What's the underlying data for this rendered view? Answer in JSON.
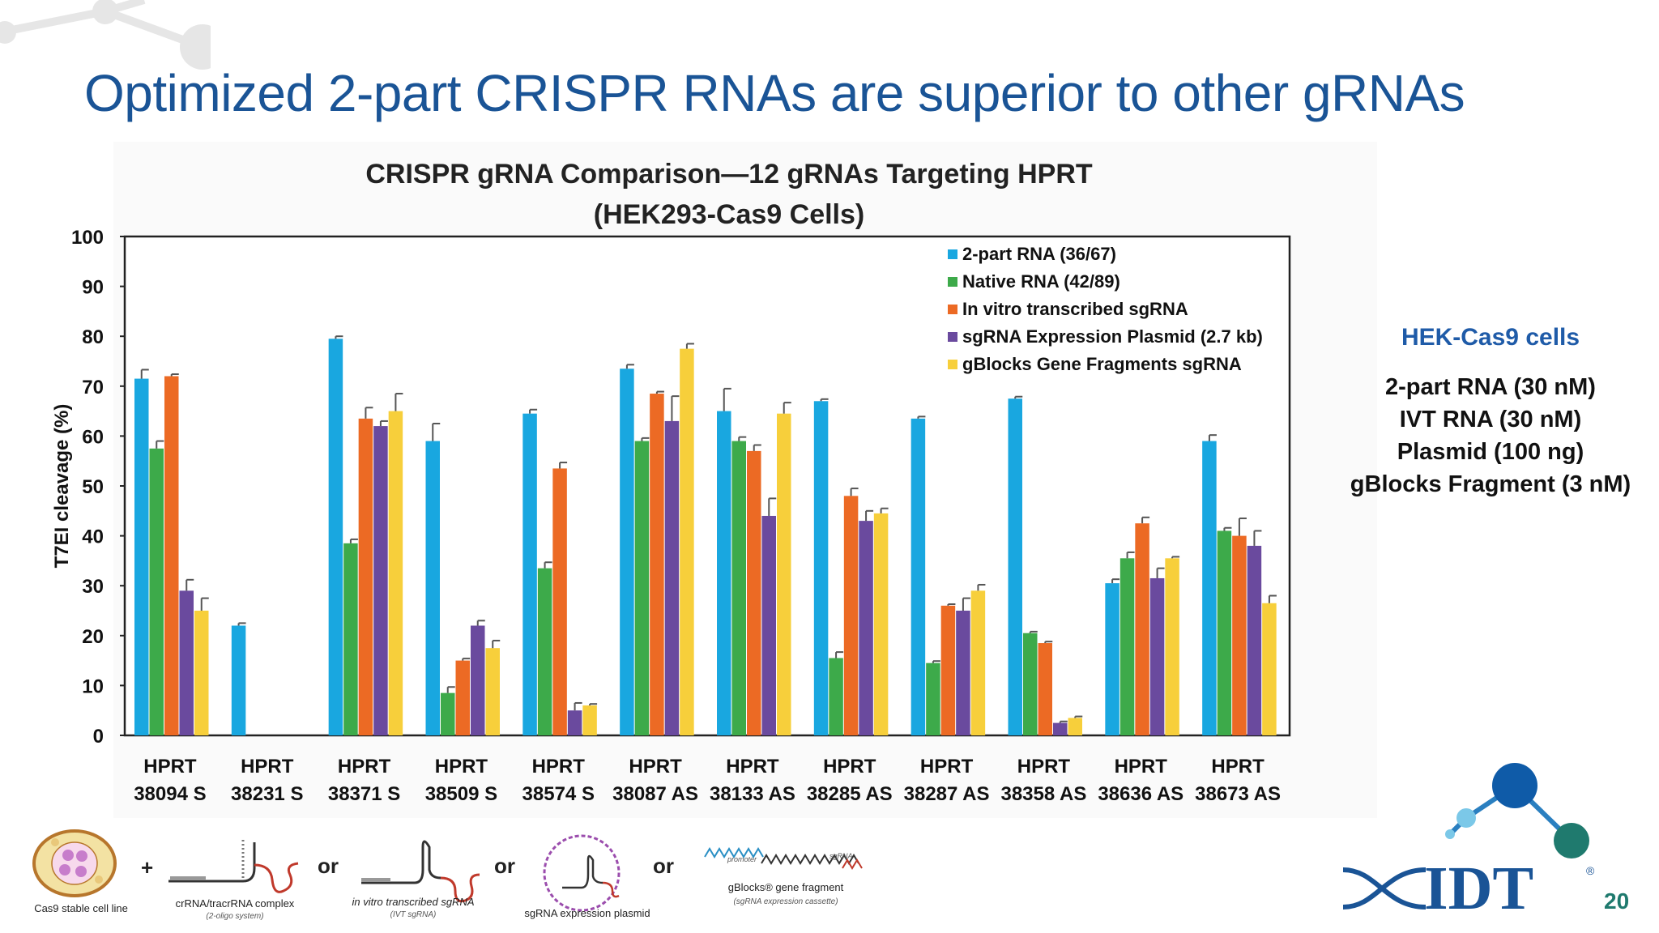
{
  "slide": {
    "title": "Optimized 2-part CRISPR RNAs are superior to other gRNAs",
    "page_number": "20"
  },
  "side_panel": {
    "heading": "HEK-Cas9 cells",
    "lines": [
      "2-part RNA (30 nM)",
      "IVT RNA (30 nM)",
      "Plasmid (100 ng)",
      "gBlocks Fragment (3 nM)"
    ]
  },
  "bottom_strip": {
    "plus": "+",
    "or": "or",
    "items": [
      {
        "label": "Cas9 stable cell line",
        "sub": ""
      },
      {
        "label": "crRNA/tracrRNA complex",
        "sub": "(2-oligo system)"
      },
      {
        "label": "in vitro transcribed sgRNA",
        "sub": "(IVT sgRNA)"
      },
      {
        "label": "sgRNA expression plasmid",
        "sub": ""
      },
      {
        "label": "gBlocks® gene fragment",
        "sub": "(sgRNA expression cassette)"
      }
    ],
    "promoter_label": "promoter",
    "sgrna_label": "sgRNA"
  },
  "logo": {
    "text": "IDT",
    "mark": "®"
  },
  "chart_data": {
    "type": "bar",
    "title": "CRISPR gRNA Comparison—12 gRNAs Targeting HPRT",
    "subtitle": "(HEK293-Cas9 Cells)",
    "xlabel": "",
    "ylabel": "T7EI cleavage (%)",
    "ylim": [
      0,
      100
    ],
    "yticks": [
      0,
      10,
      20,
      30,
      40,
      50,
      60,
      70,
      80,
      90,
      100
    ],
    "grid": false,
    "legend_position": "top-right",
    "categories": [
      [
        "HPRT",
        "38094 S"
      ],
      [
        "HPRT",
        "38231 S"
      ],
      [
        "HPRT",
        "38371 S"
      ],
      [
        "HPRT",
        "38509 S"
      ],
      [
        "HPRT",
        "38574 S"
      ],
      [
        "HPRT",
        "38087 AS"
      ],
      [
        "HPRT",
        "38133 AS"
      ],
      [
        "HPRT",
        "38285 AS"
      ],
      [
        "HPRT",
        "38287 AS"
      ],
      [
        "HPRT",
        "38358 AS"
      ],
      [
        "HPRT",
        "38636 AS"
      ],
      [
        "HPRT",
        "38673 AS"
      ]
    ],
    "series": [
      {
        "name": "2-part RNA (36/67)",
        "color": "#19a7e0",
        "values": [
          71.5,
          22,
          79.5,
          59,
          64.5,
          73.5,
          65,
          67,
          63.5,
          67.5,
          30.5,
          59
        ],
        "errors": [
          1.8,
          0.5,
          0.5,
          3.5,
          0.8,
          0.8,
          4.5,
          0.4,
          0.4,
          0.4,
          0.8,
          1.2
        ]
      },
      {
        "name": "Native  RNA (42/89)",
        "color": "#3daa4a",
        "values": [
          57.5,
          0,
          38.5,
          8.5,
          33.5,
          59,
          59,
          15.5,
          14.5,
          20.5,
          35.5,
          41
        ],
        "errors": [
          1.5,
          0,
          0.8,
          1.2,
          1.2,
          0.6,
          0.8,
          1.2,
          0.4,
          0.3,
          1.2,
          0.6
        ]
      },
      {
        "name": "In vitro transcribed sgRNA",
        "color": "#ec6a24",
        "values": [
          72,
          0,
          63.5,
          15,
          53.5,
          68.5,
          57,
          48,
          26,
          18.5,
          42.5,
          40
        ],
        "errors": [
          0.4,
          0,
          2.2,
          0.4,
          1.2,
          0.4,
          1.2,
          1.5,
          0.3,
          0.3,
          1.2,
          3.5
        ]
      },
      {
        "name": "sgRNA Expression Plasmid (2.7 kb)",
        "color": "#6a4a9e",
        "values": [
          29,
          0,
          62,
          22,
          5,
          63,
          44,
          43,
          25,
          2.5,
          31.5,
          38
        ],
        "errors": [
          2.2,
          0,
          1,
          1,
          1.5,
          5,
          3.5,
          2,
          2.5,
          0.3,
          2,
          3
        ]
      },
      {
        "name": "gBlocks Gene Fragments sgRNA",
        "color": "#f7cf3b",
        "values": [
          25,
          0,
          65,
          17.5,
          6,
          77.5,
          64.5,
          44.5,
          29,
          3.5,
          35.5,
          26.5
        ],
        "errors": [
          2.5,
          0,
          3.5,
          1.5,
          0.3,
          1,
          2.2,
          1,
          1.2,
          0.3,
          0.3,
          1.5
        ]
      }
    ]
  }
}
